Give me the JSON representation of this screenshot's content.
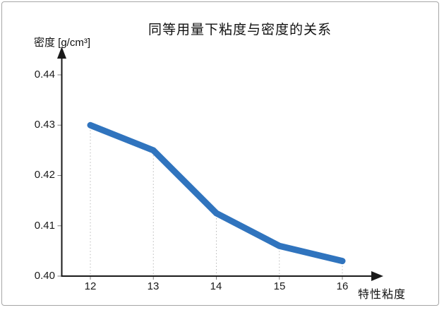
{
  "window": {
    "background": "#ffffff",
    "border_color": "#a6a6a6"
  },
  "chart_data": {
    "type": "line",
    "title": "同等用量下粘度与密度的关系",
    "xlabel": "特性粘度",
    "ylabel": "密度 [g/cm³]",
    "x": [
      12,
      13,
      14,
      15,
      16
    ],
    "y": [
      0.43,
      0.425,
      0.4125,
      0.406,
      0.403
    ],
    "xlim": [
      12,
      16
    ],
    "ylim": [
      0.4,
      0.44
    ],
    "x_ticks": [
      "12",
      "13",
      "14",
      "15",
      "16"
    ],
    "x_tick_values": [
      12,
      13,
      14,
      15,
      16
    ],
    "y_ticks": [
      "0.44",
      "0.43",
      "0.42",
      "0.41",
      "0.40"
    ],
    "y_tick_values": [
      0.44,
      0.43,
      0.42,
      0.41,
      0.4
    ],
    "line_color": "#3074BE",
    "axis_color": "#1a1a1a",
    "gridlines": "dotted vertical drop lines from each data point to the x-axis",
    "legend": "none",
    "markers": "none"
  }
}
